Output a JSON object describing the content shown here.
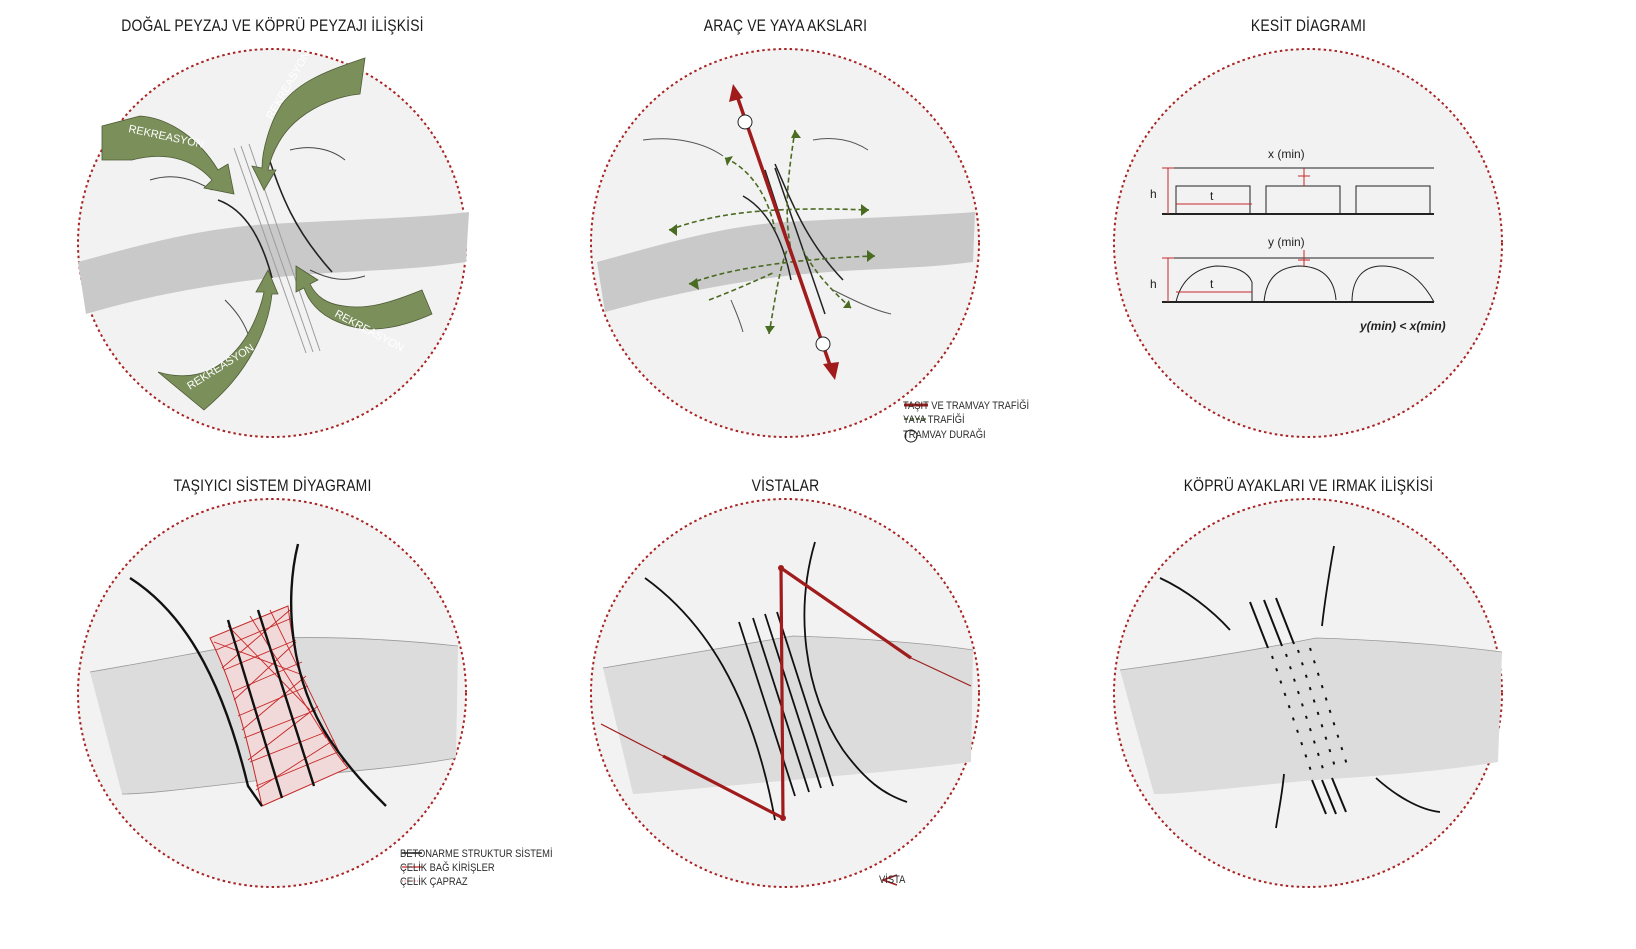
{
  "panels": {
    "landscape": {
      "title": "DOĞAL PEYZAJ VE KÖPRÜ PEYZAJI İLİŞKİSİ",
      "arrow_label": "REKREASYON",
      "arrow_color": "#7b8f5a"
    },
    "axes": {
      "title": "ARAÇ VE YAYA AKSLARI",
      "legend": {
        "vehicle": "TAŞIT VE TRAMVAY TRAFİĞİ",
        "pedestrian": "YAYA TRAFİĞİ",
        "tram_stop": "TRAMVAY DURAĞI"
      },
      "vehicle_color": "#a01c1c",
      "pedestrian_color": "#4a6b22"
    },
    "section": {
      "title": "KESİT DİAGRAMI",
      "x_min": "x (min)",
      "y_min": "y (min)",
      "h": "h",
      "t": "t",
      "comparison": "y(min) < x(min)"
    },
    "structure": {
      "title": "TAŞIYICI SİSTEM DİYAGRAMI",
      "legend": {
        "concrete": "BETONARME STRUKTUR SİSTEMİ",
        "steel_beams": "ÇELİK BAĞ KİRİŞLER",
        "steel_bracing": "ÇELİK ÇAPRAZ"
      }
    },
    "vistas": {
      "title": "VİSTALAR",
      "legend": {
        "vista": "VİSTA"
      }
    },
    "piers": {
      "title": "KÖPRÜ AYAKLARI VE IRMAK İLİŞKİSİ"
    }
  },
  "colors": {
    "frame": "#a82323",
    "disc": "#f3f2f2",
    "river": "#c9c9c9",
    "river_light": "#e4e4e4",
    "accent": "#a01c1c"
  }
}
